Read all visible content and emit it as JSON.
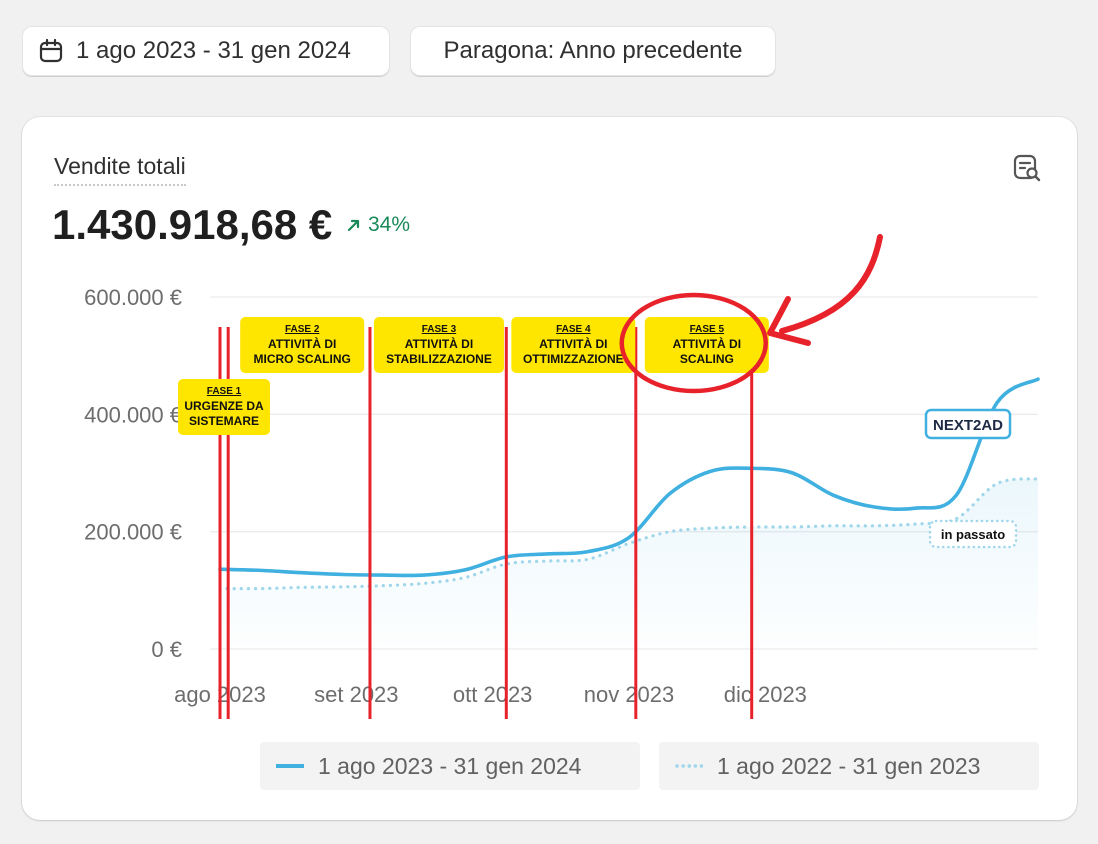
{
  "toolbar": {
    "date_range": "1 ago 2023 - 31 gen 2024",
    "compare": "Paragona: Anno precedente"
  },
  "metric": {
    "title": "Vendite totali",
    "value": "1.430.918,68 €",
    "delta": "34%"
  },
  "colors": {
    "current": "#3fb0e0",
    "previous": "#9fd6ea",
    "phase_line": "#e8222a",
    "phase_label_bg": "#ffe600",
    "positive": "#1a8a5a"
  },
  "chart_data": {
    "type": "line",
    "x_tick_labels": [
      "ago 2023",
      "set 2023",
      "ott 2023",
      "nov 2023",
      "dic 2023"
    ],
    "y_tick_labels": [
      "600.000 €",
      "400.000 €",
      "200.000 €",
      "0 €"
    ],
    "ylim": [
      0,
      600000
    ],
    "grid": true,
    "x_domain": [
      0,
      6
    ],
    "series": [
      {
        "name": "1 ago 2023 - 31 gen 2024",
        "style": "solid",
        "x": [
          0,
          0.3,
          0.6,
          0.9,
          1.2,
          1.5,
          1.8,
          2.1,
          2.4,
          2.7,
          3.0,
          3.3,
          3.6,
          3.9,
          4.2,
          4.5,
          4.8,
          5.1,
          5.4,
          5.7,
          6.0
        ],
        "values": [
          136000,
          134000,
          130000,
          127000,
          126000,
          126000,
          135000,
          157000,
          162000,
          166000,
          190000,
          265000,
          303000,
          308000,
          300000,
          262000,
          242000,
          240000,
          262000,
          420000,
          460000
        ]
      },
      {
        "name": "1 ago 2022 - 31 gen 2023",
        "style": "dotted",
        "x": [
          0,
          0.3,
          0.6,
          0.9,
          1.2,
          1.5,
          1.8,
          2.1,
          2.4,
          2.7,
          3.0,
          3.3,
          3.6,
          3.9,
          4.2,
          4.5,
          4.8,
          5.1,
          5.4,
          5.7,
          6.0
        ],
        "values": [
          103000,
          103000,
          105000,
          106000,
          108000,
          112000,
          122000,
          145000,
          150000,
          153000,
          180000,
          200000,
          206000,
          208000,
          208000,
          210000,
          210000,
          213000,
          222000,
          282000,
          290000
        ]
      }
    ],
    "annotations": [
      {
        "title": "FASE 1",
        "text": "URGENZE DA SISTEMARE",
        "x": 0.0
      },
      {
        "title": "FASE 2",
        "text": "ATTIVITÀ DI MICRO SCALING",
        "x": 0.06
      },
      {
        "title": "FASE 3",
        "text": "ATTIVITÀ DI STABILIZZAZIONE",
        "x": 1.1
      },
      {
        "title": "FASE 4",
        "text": "ATTIVITÀ DI OTTIMIZZAZIONE",
        "x": 2.1
      },
      {
        "title": "FASE 5",
        "text": "ATTIVITÀ DI SCALING",
        "x": 3.05,
        "x_end": 3.9,
        "highlighted": true
      }
    ],
    "overlay_labels": {
      "brand": "NEXT2AD",
      "previous_tag": "in passato"
    }
  },
  "legend": {
    "current": "1 ago 2023 - 31 gen 2024",
    "previous": "1 ago 2022 - 31 gen 2023"
  }
}
